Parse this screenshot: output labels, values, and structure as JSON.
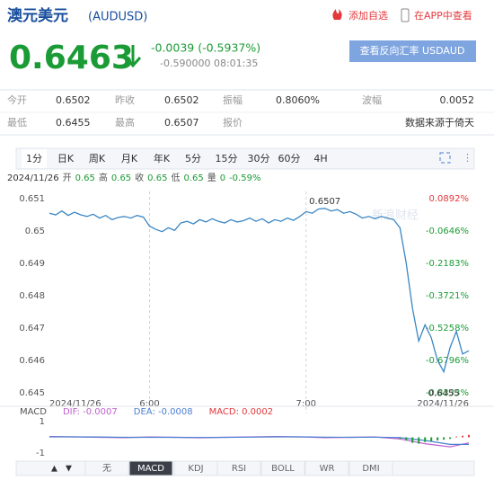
{
  "header": {
    "title": "澳元美元",
    "code": "(AUDUSD)",
    "add_watchlist": "添加自选",
    "open_app": "在APP中查看"
  },
  "quote": {
    "price": "0.6463",
    "change": "-0.0039 (-0.5937%)",
    "detail": "-0.590000 08:01:35",
    "reverse_button": "查看反向汇率 USDAUD"
  },
  "stats": {
    "rows": [
      [
        "今开",
        "0.6502",
        "昨收",
        "0.6502",
        "振幅",
        "0.8060%",
        "波幅",
        "0.0052"
      ],
      [
        "最低",
        "0.6455",
        "最高",
        "0.6507",
        "报价",
        "数据来源于倚天"
      ]
    ]
  },
  "tabs": {
    "items": [
      "1分",
      "日K",
      "周K",
      "月K",
      "年K",
      "5分",
      "15分",
      "30分",
      "60分",
      "4H"
    ],
    "selected": 0
  },
  "info": {
    "date": "2024/11/26",
    "items": [
      "开",
      "0.65",
      "高",
      "0.65",
      "收",
      "0.65",
      "低",
      "0.65",
      "量",
      "0",
      "-0.59%"
    ]
  },
  "chart_data": [
    {
      "type": "line",
      "color": "#3b87c4",
      "grid": true,
      "watermark": "新浪财经",
      "xlim": [
        0,
        67
      ],
      "xticks": [
        {
          "value": 0,
          "label": "2024/11/26"
        },
        {
          "value": 16,
          "label": "6:00"
        },
        {
          "value": 41,
          "label": "7:00"
        },
        {
          "value": 67,
          "label": "2024/11/26"
        }
      ],
      "ylim": [
        0.645,
        0.651
      ],
      "yticks": [
        0.651,
        0.65,
        0.649,
        0.648,
        0.647,
        0.646,
        0.645
      ],
      "y2lim": [
        -0.8333,
        0.0892
      ],
      "y2ticks": [
        {
          "value": 0.0892,
          "label": "0.0892%"
        },
        {
          "value": -0.0646,
          "label": "-0.0646%"
        },
        {
          "value": -0.2183,
          "label": "-0.2183%"
        },
        {
          "value": -0.3721,
          "label": "-0.3721%"
        },
        {
          "value": -0.5258,
          "label": "-0.5258%"
        },
        {
          "value": -0.6796,
          "label": "-0.6796%"
        },
        {
          "value": -0.8333,
          "label": "-0.8333%"
        }
      ],
      "high_label": "0.6507",
      "low_label": "0.6455",
      "values": [
        0.65055,
        0.6505,
        0.65062,
        0.65048,
        0.65058,
        0.6505,
        0.65045,
        0.65052,
        0.6504,
        0.65048,
        0.65035,
        0.65042,
        0.65045,
        0.6504,
        0.65048,
        0.65043,
        0.65015,
        0.65005,
        0.64998,
        0.6501,
        0.65002,
        0.65025,
        0.6503,
        0.65022,
        0.65035,
        0.65028,
        0.65038,
        0.6503,
        0.65025,
        0.65035,
        0.65028,
        0.65032,
        0.6504,
        0.6503,
        0.65038,
        0.65025,
        0.65035,
        0.6503,
        0.6504,
        0.65033,
        0.65045,
        0.6506,
        0.65055,
        0.65068,
        0.6507,
        0.65062,
        0.65066,
        0.65055,
        0.6506,
        0.65052,
        0.6504,
        0.65045,
        0.65038,
        0.65045,
        0.6504,
        0.65035,
        0.6501,
        0.649,
        0.6476,
        0.6466,
        0.6471,
        0.6467,
        0.646,
        0.64565,
        0.6464,
        0.6469,
        0.6462,
        0.6463
      ]
    },
    {
      "type": "macd",
      "title": "MACD",
      "xlim": [
        0,
        67
      ],
      "ylim": [
        -1.5,
        1.5
      ],
      "yticks": [
        1,
        -1
      ],
      "series": [
        {
          "name": "DIF: -0.0007",
          "color": "#c060d0",
          "x": [
            0,
            4,
            8,
            12,
            16,
            20,
            24,
            28,
            32,
            36,
            40,
            44,
            48,
            52,
            56,
            60,
            64,
            67
          ],
          "values": [
            0.05,
            0.03,
            0,
            -0.02,
            0.02,
            0,
            -0.03,
            0,
            0.02,
            0.05,
            0.03,
            -0.02,
            0,
            0.02,
            -0.1,
            -0.4,
            -0.6,
            -0.35
          ]
        },
        {
          "name": "DEA: -0.0008",
          "color": "#4a7fd0",
          "x": [
            0,
            4,
            8,
            12,
            16,
            20,
            24,
            28,
            32,
            36,
            40,
            44,
            48,
            52,
            56,
            60,
            64,
            67
          ],
          "values": [
            0.03,
            0.03,
            0.02,
            0,
            0,
            0,
            -0.01,
            0,
            0.01,
            0.03,
            0.03,
            0.01,
            0,
            0.01,
            -0.02,
            -0.2,
            -0.45,
            -0.45
          ]
        },
        {
          "name": "MACD: 0.0002",
          "color": "#e4393c",
          "kind": "bars",
          "x": [
            56,
            57,
            58,
            59,
            60,
            61,
            62,
            63,
            64,
            65,
            66,
            67
          ],
          "values": [
            -0.1,
            -0.2,
            -0.35,
            -0.4,
            -0.3,
            -0.25,
            -0.2,
            -0.15,
            -0.1,
            0.05,
            0.1,
            0.15
          ]
        }
      ]
    }
  ],
  "indicators": {
    "items": [
      "无",
      "MACD",
      "KDJ",
      "RSI",
      "BOLL",
      "WR",
      "DMI"
    ],
    "selected": 1
  }
}
